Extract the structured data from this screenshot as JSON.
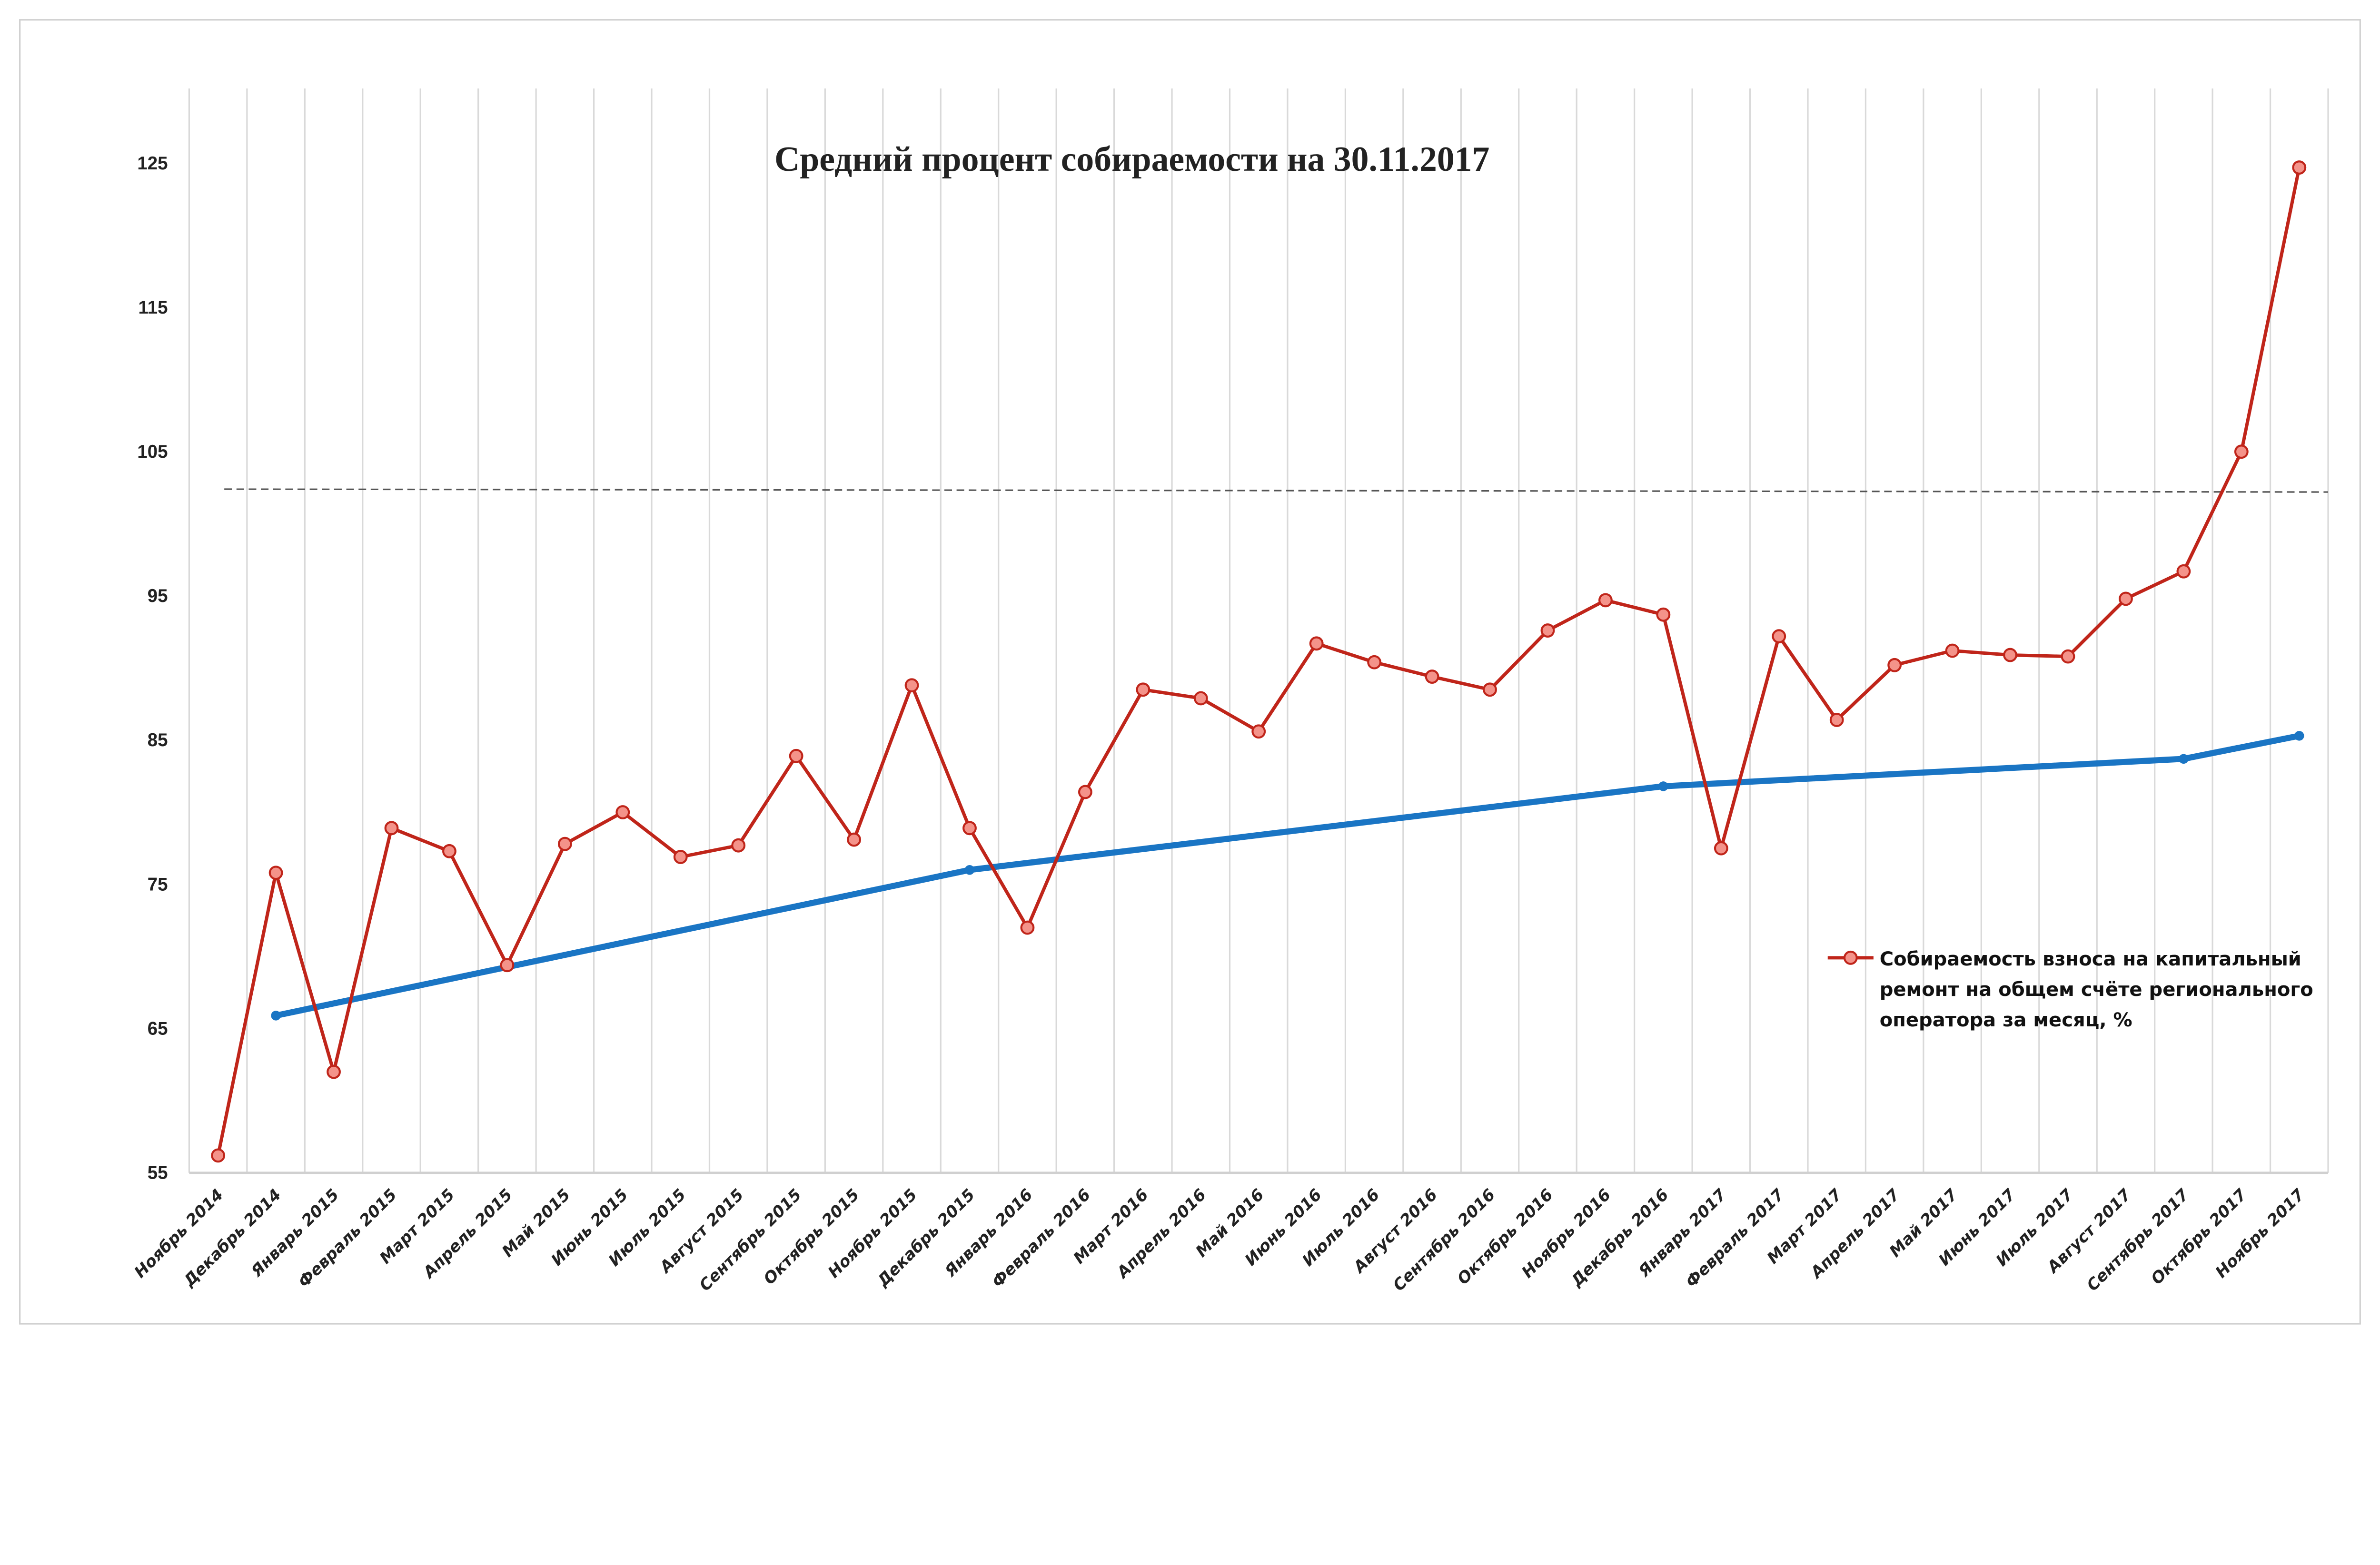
{
  "chart_data": {
    "type": "line",
    "title": "Средний процент собираемости на 30.11.2017",
    "xlabel": "",
    "ylabel": "",
    "ylim": [
      55,
      125
    ],
    "yticks": [
      55,
      65,
      75,
      85,
      95,
      105,
      115,
      125
    ],
    "grid": "vertical",
    "legend_position": "right",
    "categories": [
      "Ноябрь 2014",
      "Декабрь 2014",
      "Январь 2015",
      "Февраль 2015",
      "Март 2015",
      "Апрель 2015",
      "Май 2015",
      "Июнь 2015",
      "Июль 2015",
      "Август 2015",
      "Сентябрь 2015",
      "Октябрь 2015",
      "Ноябрь 2015",
      "Декабрь 2015",
      "Январь 2016",
      "Февраль 2016",
      "Март 2016",
      "Апрель 2016",
      "Май 2016",
      "Июнь 2016",
      "Июль 2016",
      "Август 2016",
      "Сентябрь 2016",
      "Октябрь 2016",
      "Ноябрь 2016",
      "Декабрь 2016",
      "Январь 2017",
      "Февраль 2017",
      "Март 2017",
      "Апрель 2017",
      "Май 2017",
      "Июнь 2017",
      "Июль 2017",
      "Август 2017",
      "Сентябрь 2017",
      "Октябрь 2017",
      "Ноябрь 2017"
    ],
    "series": [
      {
        "name": "Собираемость взноса на капитальный ремонт на общем счёте регионального оператора за месяц, %",
        "legend_lines": [
          "Собираемость взноса на капитальный",
          "ремонт на общем счёте регионального",
          "оператора за месяц, %"
        ],
        "color": "#c0251a",
        "marker_fill": "#f4938a",
        "values": [
          56.2,
          75.8,
          62.0,
          78.9,
          77.3,
          69.4,
          77.8,
          80.0,
          76.9,
          77.7,
          83.9,
          78.1,
          88.8,
          78.9,
          72.0,
          81.4,
          88.5,
          87.9,
          85.6,
          91.7,
          90.4,
          89.4,
          88.5,
          92.6,
          94.7,
          93.7,
          77.5,
          92.2,
          86.4,
          90.2,
          91.2,
          90.9,
          90.8,
          94.8,
          96.7,
          105.0,
          124.7
        ]
      },
      {
        "name": "trend",
        "color": "#1a75c4",
        "points": [
          {
            "category": "Декабрь 2014",
            "value": 65.9
          },
          {
            "category": "Декабрь 2015",
            "value": 76.0
          },
          {
            "category": "Декабрь 2016",
            "value": 81.8
          },
          {
            "category": "Сентябрь 2017",
            "value": 83.7
          },
          {
            "category": "Ноябрь 2017",
            "value": 85.3
          }
        ]
      }
    ],
    "reference_line": {
      "value_start": 102.4,
      "value_end": 102.2,
      "style": "dashed",
      "color": "#555555"
    }
  }
}
